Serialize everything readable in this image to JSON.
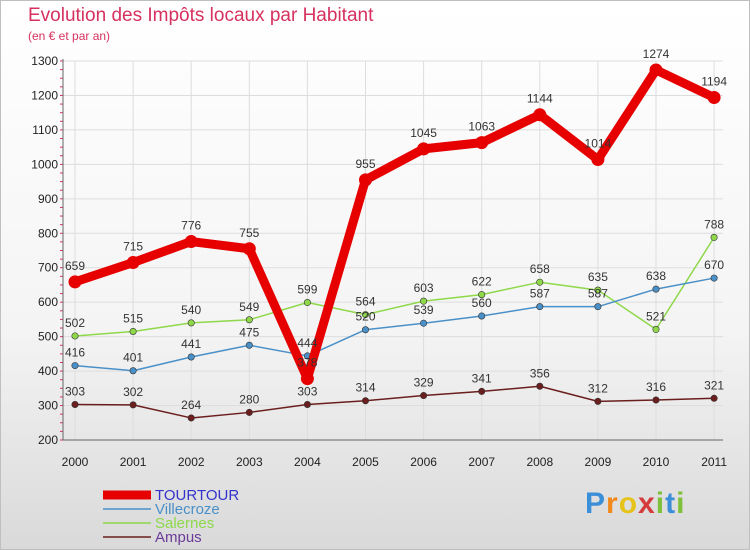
{
  "title": "Evolution des Impôts locaux par Habitant",
  "subtitle": "(en € et par an)",
  "logo": {
    "letters": [
      "P",
      "r",
      "o",
      "x",
      "i",
      "t",
      "i"
    ],
    "colors": [
      "#3b8ed8",
      "#f28a1b",
      "#e6c31a",
      "#d63b3b",
      "#7ec03a",
      "#3b8ed8",
      "#7ec03a"
    ]
  },
  "chart_data": {
    "type": "line",
    "title": "Evolution des Impôts locaux par Habitant",
    "ylabel": "(en € et par an)",
    "xlabel": "",
    "ylim": [
      200,
      1300
    ],
    "yticks": [
      200,
      300,
      400,
      500,
      600,
      700,
      800,
      900,
      1000,
      1100,
      1200,
      1300
    ],
    "categories": [
      "2000",
      "2001",
      "2002",
      "2003",
      "2004",
      "2005",
      "2006",
      "2007",
      "2008",
      "2009",
      "2010",
      "2011"
    ],
    "grid": true,
    "legend": "bottom-left",
    "series": [
      {
        "name": "TOURTOUR",
        "color": "#e60000",
        "values": [
          659,
          715,
          776,
          755,
          378,
          955,
          1045,
          1063,
          1144,
          1014,
          1274,
          1194
        ]
      },
      {
        "name": "Villecroze",
        "color": "#4a90c8",
        "values": [
          416,
          401,
          441,
          475,
          444,
          520,
          539,
          560,
          587,
          587,
          638,
          670
        ]
      },
      {
        "name": "Salernes",
        "color": "#8ed84a",
        "values": [
          502,
          515,
          540,
          549,
          599,
          564,
          603,
          622,
          658,
          635,
          521,
          788
        ]
      },
      {
        "name": "Ampus",
        "color": "#6b1e1e",
        "values": [
          303,
          302,
          264,
          280,
          303,
          314,
          329,
          341,
          356,
          312,
          316,
          321
        ]
      }
    ]
  }
}
